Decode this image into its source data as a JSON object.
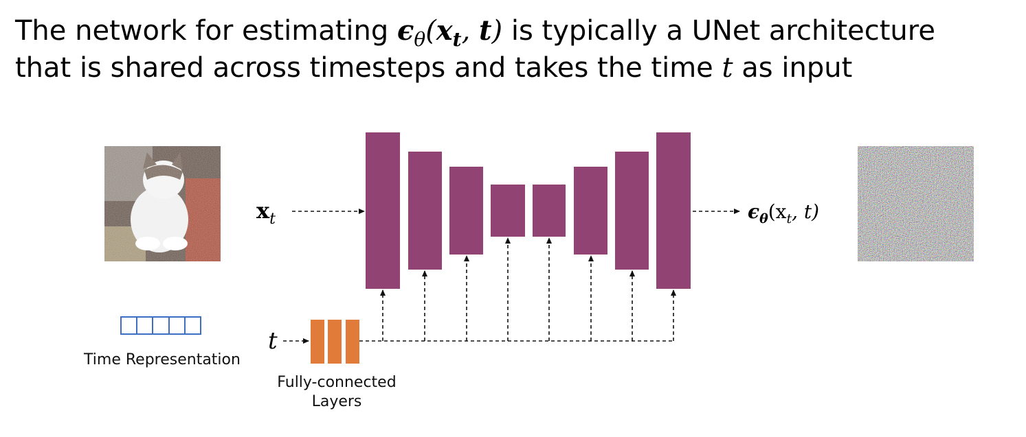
{
  "title": {
    "line1": [
      "The network for estimating ",
      "ϵ",
      "θ",
      "(",
      "x",
      "t",
      ", ",
      "t",
      ")",
      " is typically a UNet architecture"
    ],
    "line2": [
      "that is shared across timesteps and takes the time ",
      "t",
      " as input"
    ]
  },
  "input_label": [
    "x",
    "t"
  ],
  "output_label": [
    "ϵ",
    "θ",
    "(x",
    "t",
    ", t)"
  ],
  "time_label": "t",
  "time_representation": "Time Representation",
  "fc_layers": [
    "Fully-connected",
    "Layers"
  ]
}
